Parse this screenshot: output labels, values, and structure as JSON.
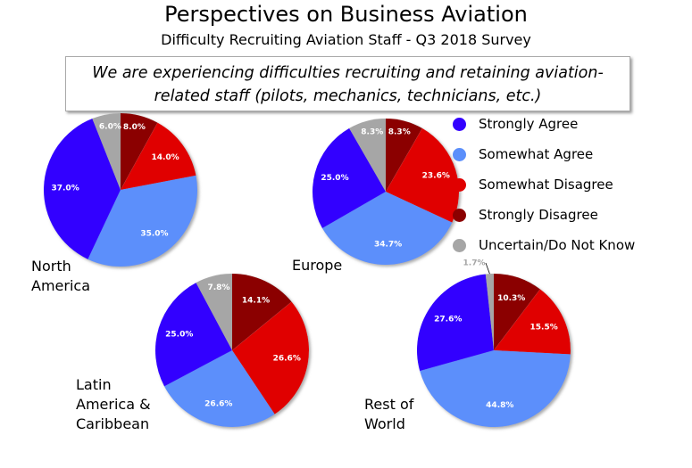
{
  "chart_data": {
    "type": "pie",
    "title": "Perspectives on Business Aviation",
    "subtitle": "Difficulty Recruiting Aviation Staff - Q3 2018 Survey",
    "question": "We are experiencing difficulties recruiting and retaining aviation-related staff (pilots, mechanics, technicians, etc.)",
    "legend_position": "right",
    "categories": [
      {
        "name": "Strongly Disagree",
        "color": "#8b0000"
      },
      {
        "name": "Somewhat Disagree",
        "color": "#e00000"
      },
      {
        "name": "Somewhat Agree",
        "color": "#5b8ffb"
      },
      {
        "name": "Strongly Agree",
        "color": "#3300ff"
      },
      {
        "name": "Uncertain/Do Not Know",
        "color": "#a6a6a6"
      }
    ],
    "legend_order": [
      "Strongly Agree",
      "Somewhat Agree",
      "Somewhat Disagree",
      "Strongly Disagree",
      "Uncertain/Do Not Know"
    ],
    "pies": [
      {
        "region": "North America",
        "values": [
          8.0,
          14.0,
          35.0,
          37.0,
          6.0
        ]
      },
      {
        "region": "Europe",
        "values": [
          8.3,
          23.6,
          34.7,
          25.0,
          8.3
        ]
      },
      {
        "region": "Latin America & Caribbean",
        "values": [
          14.1,
          26.6,
          26.6,
          25.0,
          7.8
        ]
      },
      {
        "region": "Rest of World",
        "values": [
          10.3,
          15.5,
          44.8,
          27.6,
          1.7
        ]
      }
    ],
    "region_labels": [
      [
        "North",
        "America"
      ],
      [
        "Europe"
      ],
      [
        "Latin",
        "America &",
        "Caribbean"
      ],
      [
        "Rest of",
        "World"
      ]
    ]
  }
}
